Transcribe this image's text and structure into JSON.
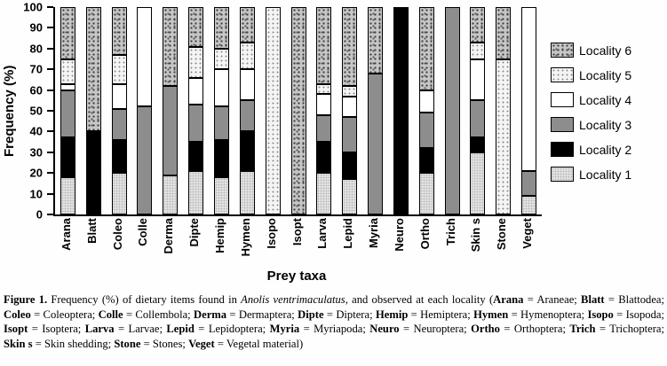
{
  "chart_data": {
    "type": "bar",
    "subtype": "stacked-percent",
    "title": "",
    "xlabel": "Prey taxa",
    "ylabel": "Frequency (%)",
    "ylim": [
      0,
      100
    ],
    "yticks": [
      0,
      10,
      20,
      30,
      40,
      50,
      60,
      70,
      80,
      90,
      100
    ],
    "grid": false,
    "legend_position": "right",
    "categories": [
      "Arana",
      "Blatt",
      "Coleo",
      "Colle",
      "Derma",
      "Dipte",
      "Hemip",
      "Hymen",
      "Isopo",
      "Isopt",
      "Larva",
      "Lepid",
      "Myria",
      "Neuro",
      "Ortho",
      "Trich",
      "Skin s",
      "Stone",
      "Veget"
    ],
    "series": [
      {
        "name": "Locality 1",
        "pattern": "fine-light-stipple",
        "color": "#e1e1e1",
        "values": [
          18,
          0,
          20,
          0,
          19,
          21,
          18,
          21,
          0,
          0,
          20,
          17,
          0,
          0,
          20,
          0,
          30,
          0,
          9
        ]
      },
      {
        "name": "Locality 2",
        "pattern": "solid-black",
        "color": "#000000",
        "values": [
          19,
          40,
          16,
          0,
          0,
          14,
          18,
          19,
          0,
          0,
          15,
          13,
          0,
          100,
          12,
          0,
          7,
          0,
          0
        ]
      },
      {
        "name": "Locality 3",
        "pattern": "solid-gray",
        "color": "#8d8d8d",
        "values": [
          23,
          0,
          15,
          52,
          43,
          18,
          16,
          15,
          0,
          0,
          13,
          17,
          68,
          0,
          17,
          100,
          18,
          0,
          12
        ]
      },
      {
        "name": "Locality 4",
        "pattern": "solid-white",
        "color": "#ffffff",
        "values": [
          3,
          0,
          12,
          48,
          0,
          13,
          18,
          15,
          0,
          0,
          10,
          10,
          0,
          0,
          11,
          0,
          20,
          0,
          79
        ]
      },
      {
        "name": "Locality 5",
        "pattern": "sparse-dots",
        "color": "#f4f4f4",
        "values": [
          12,
          0,
          14,
          0,
          0,
          15,
          10,
          13,
          100,
          0,
          5,
          5,
          0,
          0,
          0,
          0,
          8,
          75,
          0
        ]
      },
      {
        "name": "Locality 6",
        "pattern": "coarse-stipple",
        "color": "#c6c6c6",
        "values": [
          25,
          60,
          23,
          0,
          38,
          19,
          20,
          17,
          0,
          100,
          37,
          38,
          32,
          0,
          40,
          0,
          17,
          25,
          0
        ]
      }
    ],
    "legend": [
      "Locality 6",
      "Locality 5",
      "Locality 4",
      "Locality 3",
      "Locality 2",
      "Locality 1"
    ]
  },
  "caption": {
    "segments": [
      {
        "t": "Figure 1.",
        "b": 1
      },
      {
        "t": " Frequency (%) of dietary items found in "
      },
      {
        "t": "Anolis ventrimaculatus",
        "i": 1
      },
      {
        "t": ", and observed at each locality ("
      },
      {
        "t": "Arana",
        "b": 1
      },
      {
        "t": " = Araneae; "
      },
      {
        "t": "Blatt",
        "b": 1
      },
      {
        "t": " = Blattodea; "
      },
      {
        "t": "Coleo",
        "b": 1
      },
      {
        "t": " = Coleoptera; "
      },
      {
        "t": "Colle",
        "b": 1
      },
      {
        "t": " = Collembola; "
      },
      {
        "t": "Derma",
        "b": 1
      },
      {
        "t": " = Dermaptera; "
      },
      {
        "t": "Dipte",
        "b": 1
      },
      {
        "t": " = Diptera; "
      },
      {
        "t": "Hemip",
        "b": 1
      },
      {
        "t": " = Hemiptera; "
      },
      {
        "t": "Hymen",
        "b": 1
      },
      {
        "t": " = Hymenoptera; "
      },
      {
        "t": "Isopo",
        "b": 1
      },
      {
        "t": " = Isopoda; "
      },
      {
        "t": "Isopt",
        "b": 1
      },
      {
        "t": " = Isoptera; "
      },
      {
        "t": "Larva",
        "b": 1
      },
      {
        "t": " = Larvae; "
      },
      {
        "t": "Lepid",
        "b": 1
      },
      {
        "t": " = Lepidoptera; "
      },
      {
        "t": "Myria",
        "b": 1
      },
      {
        "t": " = Myriapoda; "
      },
      {
        "t": "Neuro",
        "b": 1
      },
      {
        "t": " = Neuroptera; "
      },
      {
        "t": "Ortho",
        "b": 1
      },
      {
        "t": " = Orthoptera; "
      },
      {
        "t": "Trich",
        "b": 1
      },
      {
        "t": " = Trichoptera; "
      },
      {
        "t": "Skin s",
        "b": 1
      },
      {
        "t": " = Skin shedding; "
      },
      {
        "t": "Stone",
        "b": 1
      },
      {
        "t": " = Stones; "
      },
      {
        "t": "Veget",
        "b": 1
      },
      {
        "t": " = Vegetal material)"
      }
    ]
  }
}
